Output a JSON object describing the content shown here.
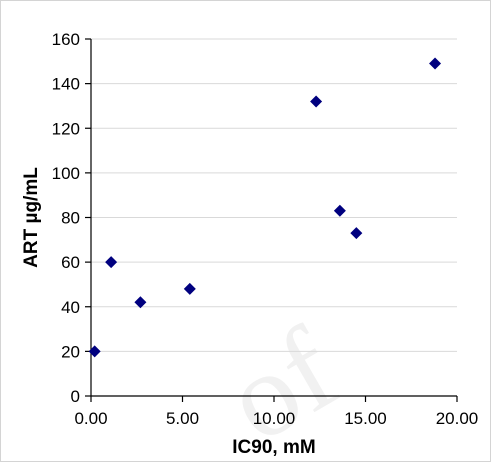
{
  "chart_data": {
    "type": "scatter",
    "title": "",
    "xlabel": "IC90, mM",
    "ylabel": "ART µg/mL",
    "xlim": [
      0,
      20
    ],
    "ylim": [
      0,
      160
    ],
    "x_ticks": [
      "0.00",
      "5.00",
      "10.00",
      "15.00",
      "20.00"
    ],
    "y_ticks": [
      "0",
      "20",
      "40",
      "60",
      "80",
      "100",
      "120",
      "140",
      "160"
    ],
    "grid": "horizontal",
    "legend": "none",
    "marker": "diamond",
    "marker_color": "#00007f",
    "series": [
      {
        "points": [
          {
            "x": 0.2,
            "y": 20
          },
          {
            "x": 1.1,
            "y": 60
          },
          {
            "x": 2.7,
            "y": 42
          },
          {
            "x": 5.4,
            "y": 48
          },
          {
            "x": 12.3,
            "y": 132
          },
          {
            "x": 13.6,
            "y": 83
          },
          {
            "x": 14.5,
            "y": 73
          },
          {
            "x": 18.8,
            "y": 149
          }
        ]
      }
    ]
  },
  "watermark": "of"
}
